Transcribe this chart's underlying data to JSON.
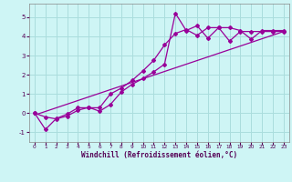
{
  "xlabel": "Windchill (Refroidissement éolien,°C)",
  "bg_color": "#cef5f5",
  "grid_color": "#aadddd",
  "line_color": "#990099",
  "xlim": [
    -0.5,
    23.5
  ],
  "ylim": [
    -1.5,
    5.7
  ],
  "xticks": [
    0,
    1,
    2,
    3,
    4,
    5,
    6,
    7,
    8,
    9,
    10,
    11,
    12,
    13,
    14,
    15,
    16,
    17,
    18,
    19,
    20,
    21,
    22,
    23
  ],
  "yticks": [
    -1,
    0,
    1,
    2,
    3,
    4,
    5
  ],
  "line1_x": [
    0,
    1,
    2,
    3,
    4,
    5,
    6,
    7,
    8,
    9,
    10,
    11,
    12,
    13,
    14,
    15,
    16,
    17,
    18,
    19,
    20,
    21,
    22,
    23
  ],
  "line1_y": [
    0.0,
    -0.2,
    -0.3,
    -0.15,
    0.15,
    0.3,
    0.1,
    0.45,
    1.1,
    1.5,
    1.8,
    2.15,
    2.55,
    5.2,
    4.3,
    4.55,
    3.9,
    4.45,
    4.45,
    4.3,
    3.85,
    4.3,
    4.3,
    4.3
  ],
  "line2_x": [
    0,
    1,
    2,
    3,
    4,
    5,
    6,
    7,
    8,
    9,
    10,
    11,
    12,
    13,
    14,
    15,
    16,
    17,
    18,
    19,
    20,
    21,
    22,
    23
  ],
  "line2_y": [
    0.0,
    -0.85,
    -0.28,
    -0.05,
    0.28,
    0.28,
    0.28,
    1.0,
    1.3,
    1.7,
    2.2,
    2.75,
    3.55,
    4.15,
    4.35,
    4.05,
    4.45,
    4.45,
    3.75,
    4.25,
    4.25,
    4.25,
    4.25,
    4.25
  ],
  "line3_x": [
    0,
    23
  ],
  "line3_y": [
    -0.1,
    4.25
  ]
}
